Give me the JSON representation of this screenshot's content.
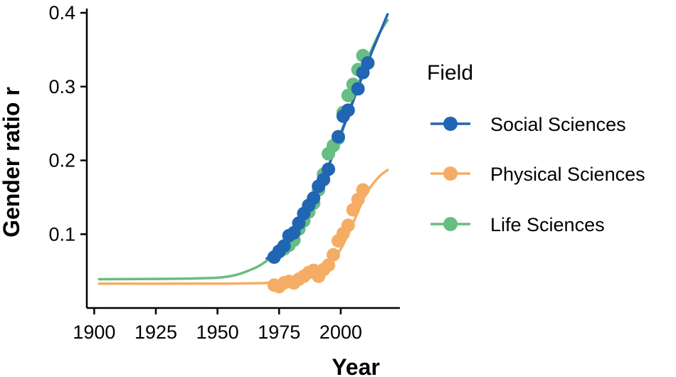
{
  "chart_data": {
    "type": "line",
    "xlabel": "Year",
    "ylabel": "Gender ratio r",
    "xlim": [
      1897,
      2024
    ],
    "ylim": [
      0.0,
      0.4
    ],
    "x_ticks": [
      1900,
      1925,
      1950,
      1975,
      2000
    ],
    "x_tick_labels": [
      "1900",
      "1925",
      "1950",
      "1975",
      "2000"
    ],
    "y_ticks": [
      0.1,
      0.2,
      0.3,
      0.4
    ],
    "y_tick_labels": [
      "0.1",
      "0.2",
      "0.3",
      "0.4"
    ],
    "grid": false,
    "legend": {
      "title": "Field",
      "position": "right"
    },
    "series": [
      {
        "name": "Social Sciences",
        "color": "#2166b3",
        "points": [
          [
            1973,
            0.069
          ],
          [
            1975,
            0.077
          ],
          [
            1977,
            0.084
          ],
          [
            1979,
            0.098
          ],
          [
            1981,
            0.102
          ],
          [
            1983,
            0.115
          ],
          [
            1985,
            0.128
          ],
          [
            1987,
            0.139
          ],
          [
            1989,
            0.149
          ],
          [
            1991,
            0.165
          ],
          [
            1993,
            0.174
          ],
          [
            1995,
            0.188
          ],
          [
            1999,
            0.232
          ],
          [
            2001,
            0.26
          ],
          [
            2003,
            0.268
          ],
          [
            2007,
            0.297
          ],
          [
            2009,
            0.319
          ],
          [
            2011,
            0.332
          ]
        ],
        "fit": [
          [
            1970,
            0.067
          ],
          [
            1980,
            0.095
          ],
          [
            1990,
            0.152
          ],
          [
            2000,
            0.235
          ],
          [
            2010,
            0.325
          ],
          [
            2019,
            0.398
          ]
        ]
      },
      {
        "name": "Physical Sciences",
        "color": "#f5ad65",
        "points": [
          [
            1973,
            0.031
          ],
          [
            1975,
            0.029
          ],
          [
            1977,
            0.034
          ],
          [
            1979,
            0.036
          ],
          [
            1981,
            0.034
          ],
          [
            1983,
            0.039
          ],
          [
            1985,
            0.043
          ],
          [
            1987,
            0.048
          ],
          [
            1989,
            0.051
          ],
          [
            1991,
            0.043
          ],
          [
            1993,
            0.052
          ],
          [
            1995,
            0.058
          ],
          [
            1997,
            0.072
          ],
          [
            1999,
            0.091
          ],
          [
            2001,
            0.101
          ],
          [
            2003,
            0.112
          ],
          [
            2005,
            0.133
          ],
          [
            2007,
            0.147
          ],
          [
            2009,
            0.16
          ]
        ],
        "fit": [
          [
            1902,
            0.033
          ],
          [
            1950,
            0.033
          ],
          [
            1970,
            0.034
          ],
          [
            1980,
            0.037
          ],
          [
            1990,
            0.047
          ],
          [
            1995,
            0.058
          ],
          [
            2000,
            0.08
          ],
          [
            2005,
            0.115
          ],
          [
            2010,
            0.153
          ],
          [
            2015,
            0.176
          ],
          [
            2019,
            0.187
          ]
        ]
      },
      {
        "name": "Life Sciences",
        "color": "#68bd82",
        "points": [
          [
            1975,
            0.076
          ],
          [
            1977,
            0.08
          ],
          [
            1979,
            0.085
          ],
          [
            1981,
            0.092
          ],
          [
            1983,
            0.107
          ],
          [
            1985,
            0.118
          ],
          [
            1987,
            0.13
          ],
          [
            1989,
            0.142
          ],
          [
            1991,
            0.16
          ],
          [
            1993,
            0.181
          ],
          [
            1995,
            0.209
          ],
          [
            1997,
            0.22
          ],
          [
            1999,
            0.23
          ],
          [
            2001,
            0.265
          ],
          [
            2003,
            0.288
          ],
          [
            2005,
            0.303
          ],
          [
            2007,
            0.323
          ],
          [
            2009,
            0.342
          ]
        ],
        "fit": [
          [
            1902,
            0.039
          ],
          [
            1940,
            0.04
          ],
          [
            1955,
            0.043
          ],
          [
            1965,
            0.054
          ],
          [
            1970,
            0.064
          ],
          [
            1975,
            0.077
          ],
          [
            1980,
            0.097
          ],
          [
            1985,
            0.123
          ],
          [
            1990,
            0.155
          ],
          [
            1995,
            0.193
          ],
          [
            2000,
            0.237
          ],
          [
            2005,
            0.283
          ],
          [
            2010,
            0.33
          ],
          [
            2015,
            0.368
          ],
          [
            2019,
            0.39
          ]
        ]
      }
    ]
  }
}
